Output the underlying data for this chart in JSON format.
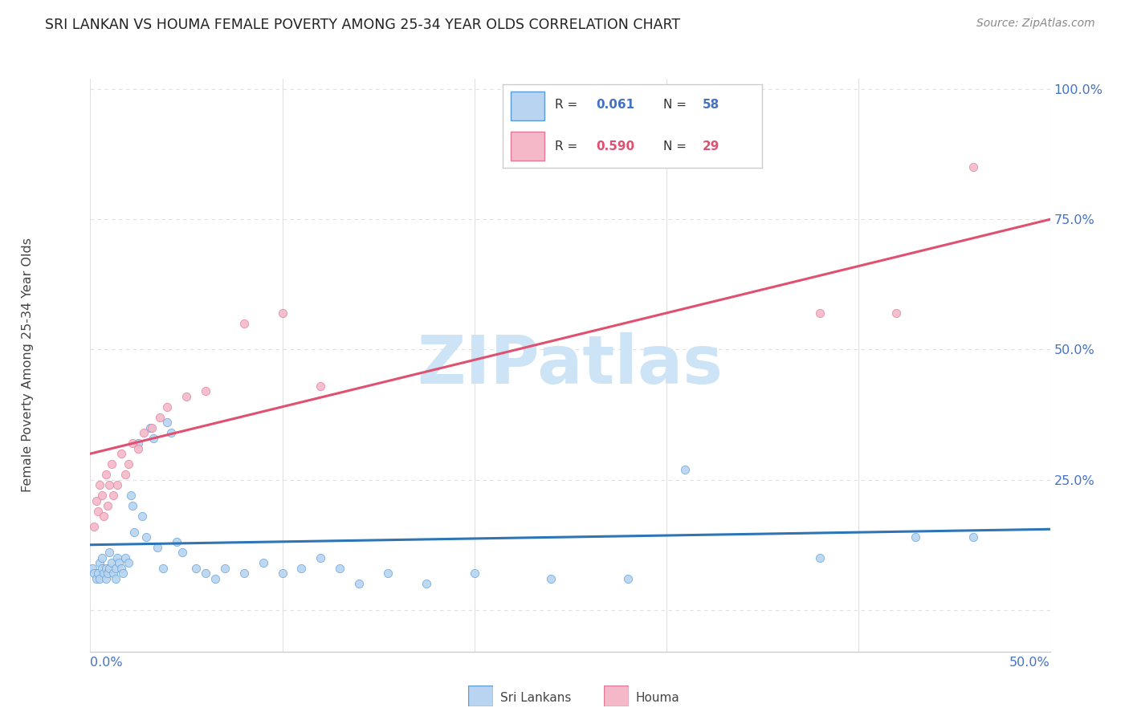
{
  "title": "SRI LANKAN VS HOUMA FEMALE POVERTY AMONG 25-34 YEAR OLDS CORRELATION CHART",
  "source": "Source: ZipAtlas.com",
  "ylabel": "Female Poverty Among 25-34 Year Olds",
  "xmin": 0.0,
  "xmax": 0.5,
  "ymin": -0.08,
  "ymax": 1.02,
  "right_yticks": [
    0.0,
    0.25,
    0.5,
    0.75,
    1.0
  ],
  "right_yticklabels": [
    "",
    "25.0%",
    "50.0%",
    "75.0%",
    "100.0%"
  ],
  "sri_lankans": {
    "R": "0.061",
    "N": "58",
    "color": "#b8d4f0",
    "edge_color": "#5b9bd5",
    "line_color": "#2e75b6",
    "x": [
      0.001,
      0.002,
      0.003,
      0.004,
      0.005,
      0.005,
      0.006,
      0.006,
      0.007,
      0.008,
      0.008,
      0.009,
      0.01,
      0.01,
      0.011,
      0.012,
      0.013,
      0.013,
      0.014,
      0.015,
      0.016,
      0.017,
      0.018,
      0.02,
      0.021,
      0.022,
      0.023,
      0.025,
      0.027,
      0.029,
      0.031,
      0.033,
      0.035,
      0.038,
      0.04,
      0.042,
      0.045,
      0.048,
      0.055,
      0.06,
      0.065,
      0.07,
      0.08,
      0.09,
      0.1,
      0.11,
      0.12,
      0.13,
      0.14,
      0.155,
      0.175,
      0.2,
      0.24,
      0.28,
      0.31,
      0.38,
      0.43,
      0.46
    ],
    "y": [
      0.08,
      0.07,
      0.06,
      0.07,
      0.06,
      0.09,
      0.08,
      0.1,
      0.07,
      0.06,
      0.08,
      0.07,
      0.08,
      0.11,
      0.09,
      0.07,
      0.06,
      0.08,
      0.1,
      0.09,
      0.08,
      0.07,
      0.1,
      0.09,
      0.22,
      0.2,
      0.15,
      0.32,
      0.18,
      0.14,
      0.35,
      0.33,
      0.12,
      0.08,
      0.36,
      0.34,
      0.13,
      0.11,
      0.08,
      0.07,
      0.06,
      0.08,
      0.07,
      0.09,
      0.07,
      0.08,
      0.1,
      0.08,
      0.05,
      0.07,
      0.05,
      0.07,
      0.06,
      0.06,
      0.27,
      0.1,
      0.14,
      0.14
    ]
  },
  "houma": {
    "R": "0.590",
    "N": "29",
    "color": "#f4b8c8",
    "edge_color": "#e07898",
    "line_color": "#e05070",
    "x": [
      0.002,
      0.003,
      0.004,
      0.005,
      0.006,
      0.007,
      0.008,
      0.009,
      0.01,
      0.011,
      0.012,
      0.014,
      0.016,
      0.018,
      0.02,
      0.022,
      0.025,
      0.028,
      0.032,
      0.036,
      0.04,
      0.05,
      0.06,
      0.08,
      0.1,
      0.12,
      0.38,
      0.42,
      0.46
    ],
    "y": [
      0.16,
      0.21,
      0.19,
      0.24,
      0.22,
      0.18,
      0.26,
      0.2,
      0.24,
      0.28,
      0.22,
      0.24,
      0.3,
      0.26,
      0.28,
      0.32,
      0.31,
      0.34,
      0.35,
      0.37,
      0.39,
      0.41,
      0.42,
      0.55,
      0.57,
      0.43,
      0.57,
      0.57,
      0.85
    ]
  },
  "legend_R_color_sl": "#4472c4",
  "legend_N_color_sl": "#4472c4",
  "legend_R_color_ho": "#e05070",
  "legend_N_color_ho": "#e05070",
  "watermark": "ZIPatlas",
  "watermark_color": "#cce4f5",
  "background_color": "#ffffff",
  "grid_color": "#e0e0e0",
  "axis_label_color": "#4472c4"
}
